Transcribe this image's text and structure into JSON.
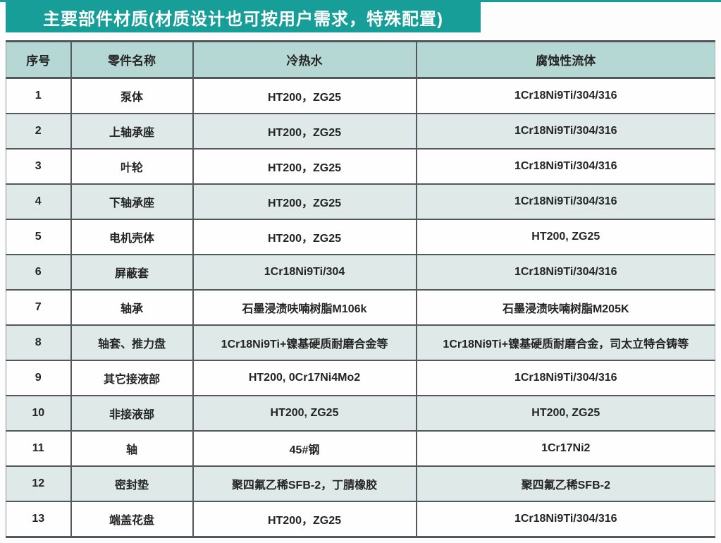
{
  "page": {
    "title_banner": "主要部件材质(材质设计也可按用户需求，特殊配置)"
  },
  "colors": {
    "teal_accent": "#179e98",
    "header_row_bg": "#b5d8d4",
    "alt_row_bg": "#dfeae8",
    "border_dark": "#54585b",
    "title_text": "#ffffff",
    "body_text": "#242424"
  },
  "table": {
    "columns": [
      "序号",
      "零件名称",
      "冷热水",
      "腐蚀性流体"
    ],
    "rows": [
      {
        "no": "1",
        "part": "泵体",
        "water": "HT200，ZG25",
        "corrosive": "1Cr18Ni9Ti/304/316"
      },
      {
        "no": "2",
        "part": "上轴承座",
        "water": "HT200，ZG25",
        "corrosive": "1Cr18Ni9Ti/304/316"
      },
      {
        "no": "3",
        "part": "叶轮",
        "water": "HT200，ZG25",
        "corrosive": "1Cr18Ni9Ti/304/316"
      },
      {
        "no": "4",
        "part": "下轴承座",
        "water": "HT200，ZG25",
        "corrosive": "1Cr18Ni9Ti/304/316"
      },
      {
        "no": "5",
        "part": "电机壳体",
        "water": "HT200，ZG25",
        "corrosive": "HT200, ZG25"
      },
      {
        "no": "6",
        "part": "屏蔽套",
        "water": "1Cr18Ni9Ti/304",
        "corrosive": "1Cr18Ni9Ti/304/316"
      },
      {
        "no": "7",
        "part": "轴承",
        "water": "石墨浸渍呋喃树脂M106k",
        "corrosive": "石墨浸渍呋喃树脂M205K"
      },
      {
        "no": "8",
        "part": "轴套、推力盘",
        "water": "1Cr18Ni9Ti+镍基硬质耐磨合金等",
        "corrosive": "1Cr18Ni9Ti+镍基硬质耐磨合金，司太立特合铸等"
      },
      {
        "no": "9",
        "part": "其它接液部",
        "water": "HT200, 0Cr17Ni4Mo2",
        "corrosive": "1Cr18Ni9Ti/304/316"
      },
      {
        "no": "10",
        "part": "非接液部",
        "water": "HT200, ZG25",
        "corrosive": "HT200, ZG25"
      },
      {
        "no": "11",
        "part": "轴",
        "water": "45#钢",
        "corrosive": "1Cr17Ni2"
      },
      {
        "no": "12",
        "part": "密封垫",
        "water": "聚四氟乙稀SFB-2，丁腈橡胶",
        "corrosive": "聚四氟乙稀SFB-2"
      },
      {
        "no": "13",
        "part": "端盖花盘",
        "water": "HT200，ZG25",
        "corrosive": "1Cr18Ni9Ti/304/316"
      }
    ]
  }
}
